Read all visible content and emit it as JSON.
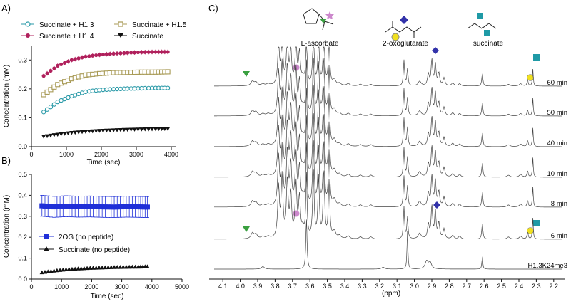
{
  "panels": {
    "a": "A)",
    "b": "B)",
    "c": "C)"
  },
  "colors": {
    "h13": "#2a9aa8",
    "h15": "#a89a55",
    "h14": "#b0205c",
    "succ": "#111111",
    "blue": "#1f2fd8",
    "green": "#3aa040",
    "pink": "#cc88cc",
    "diamond": "#3333aa",
    "square": "#1f9aa6",
    "circle": "#f0e020"
  },
  "chart_data": [
    {
      "type": "scatter",
      "panel": "A)",
      "xlabel": "Time (sec)",
      "ylabel": "Concentration (mM)",
      "xlim": [
        0,
        4000
      ],
      "ylim": [
        0,
        0.35
      ],
      "xticks": [
        0,
        1000,
        2000,
        3000,
        4000
      ],
      "yticks": [
        0.0,
        0.1,
        0.2,
        0.3
      ],
      "ytick_labels": [
        "0.0",
        "0.1",
        "0.2",
        "0.3"
      ],
      "legend_position": "top",
      "series": [
        {
          "name": "Succinate + H1.3",
          "marker": "circle-open",
          "color": "#2a9aa8",
          "x": [
            350,
            750,
            1150,
            1550,
            1950,
            2350,
            2750,
            3150,
            3550,
            3900
          ],
          "y": [
            0.12,
            0.155,
            0.175,
            0.19,
            0.196,
            0.199,
            0.201,
            0.202,
            0.203,
            0.203
          ]
        },
        {
          "name": "Succinate + H1.5",
          "marker": "square-open",
          "color": "#a89a55",
          "x": [
            350,
            750,
            1150,
            1550,
            1950,
            2350,
            2750,
            3150,
            3550,
            3900
          ],
          "y": [
            0.18,
            0.215,
            0.235,
            0.248,
            0.253,
            0.256,
            0.257,
            0.258,
            0.258,
            0.259
          ]
        },
        {
          "name": "Succinate + H1.4",
          "marker": "circle-filled",
          "color": "#b0205c",
          "x": [
            350,
            750,
            1150,
            1550,
            1950,
            2350,
            2750,
            3150,
            3550,
            3900
          ],
          "y": [
            0.245,
            0.28,
            0.3,
            0.312,
            0.318,
            0.322,
            0.325,
            0.327,
            0.328,
            0.328
          ]
        },
        {
          "name": "Succinate",
          "marker": "triangle-down",
          "color": "#111111",
          "x": [
            350,
            750,
            1150,
            1550,
            1950,
            2350,
            2750,
            3150,
            3550,
            3900
          ],
          "y": [
            0.035,
            0.042,
            0.048,
            0.052,
            0.055,
            0.057,
            0.059,
            0.06,
            0.061,
            0.062
          ]
        }
      ]
    },
    {
      "type": "scatter",
      "panel": "B)",
      "xlabel": "Time (sec)",
      "ylabel": "Concentration (mM)",
      "xlim": [
        0,
        5000
      ],
      "ylim": [
        0,
        0.5
      ],
      "xticks": [
        0,
        1000,
        2000,
        3000,
        4000,
        5000
      ],
      "yticks": [
        0.0,
        0.1,
        0.2,
        0.3,
        0.4,
        0.5
      ],
      "ytick_labels": [
        "0.0",
        "0.1",
        "0.2",
        "0.3",
        "0.4",
        "0.5"
      ],
      "legend_position": "bottom-left",
      "series": [
        {
          "name": "2OG (no peptide)",
          "marker": "square-filled",
          "color": "#1f2fd8",
          "x": [
            350,
            750,
            1150,
            1550,
            1950,
            2350,
            2750,
            3150,
            3550,
            3850
          ],
          "y": [
            0.35,
            0.345,
            0.348,
            0.346,
            0.347,
            0.345,
            0.344,
            0.346,
            0.345,
            0.344
          ],
          "err": 0.05
        },
        {
          "name": "Succinate (no peptide)",
          "marker": "triangle-up",
          "color": "#111111",
          "x": [
            350,
            750,
            1150,
            1550,
            1950,
            2350,
            2750,
            3150,
            3550,
            3850
          ],
          "y": [
            0.032,
            0.04,
            0.046,
            0.05,
            0.053,
            0.055,
            0.057,
            0.058,
            0.059,
            0.06
          ]
        }
      ]
    },
    {
      "type": "line",
      "panel": "C)",
      "xlabel": "(ppm)",
      "xlim": [
        4.15,
        2.15
      ],
      "xticks": [
        4.1,
        4.0,
        3.9,
        3.8,
        3.7,
        3.6,
        3.5,
        3.4,
        3.3,
        3.2,
        3.1,
        3.0,
        2.9,
        2.8,
        2.7,
        2.6,
        2.5,
        2.4,
        2.3,
        2.2
      ],
      "xtick_labels": [
        "4.1",
        "4.0",
        "3.9",
        "3.8",
        "3.7",
        "3.6",
        "3.5",
        "3.4",
        "3.3",
        "3.2",
        "3.1",
        "3.0",
        "2.9",
        "2.8",
        "2.7",
        "2.6",
        "2.5",
        "2.4",
        "2.3",
        "2.2"
      ],
      "trace_labels": [
        "60 min",
        "50 min",
        "40 min",
        "10 min",
        "8 min",
        "6 min",
        "H1.3K24me3"
      ],
      "compounds": [
        "L-ascorbate",
        "2-oxoglutarate",
        "succinate"
      ]
    }
  ]
}
